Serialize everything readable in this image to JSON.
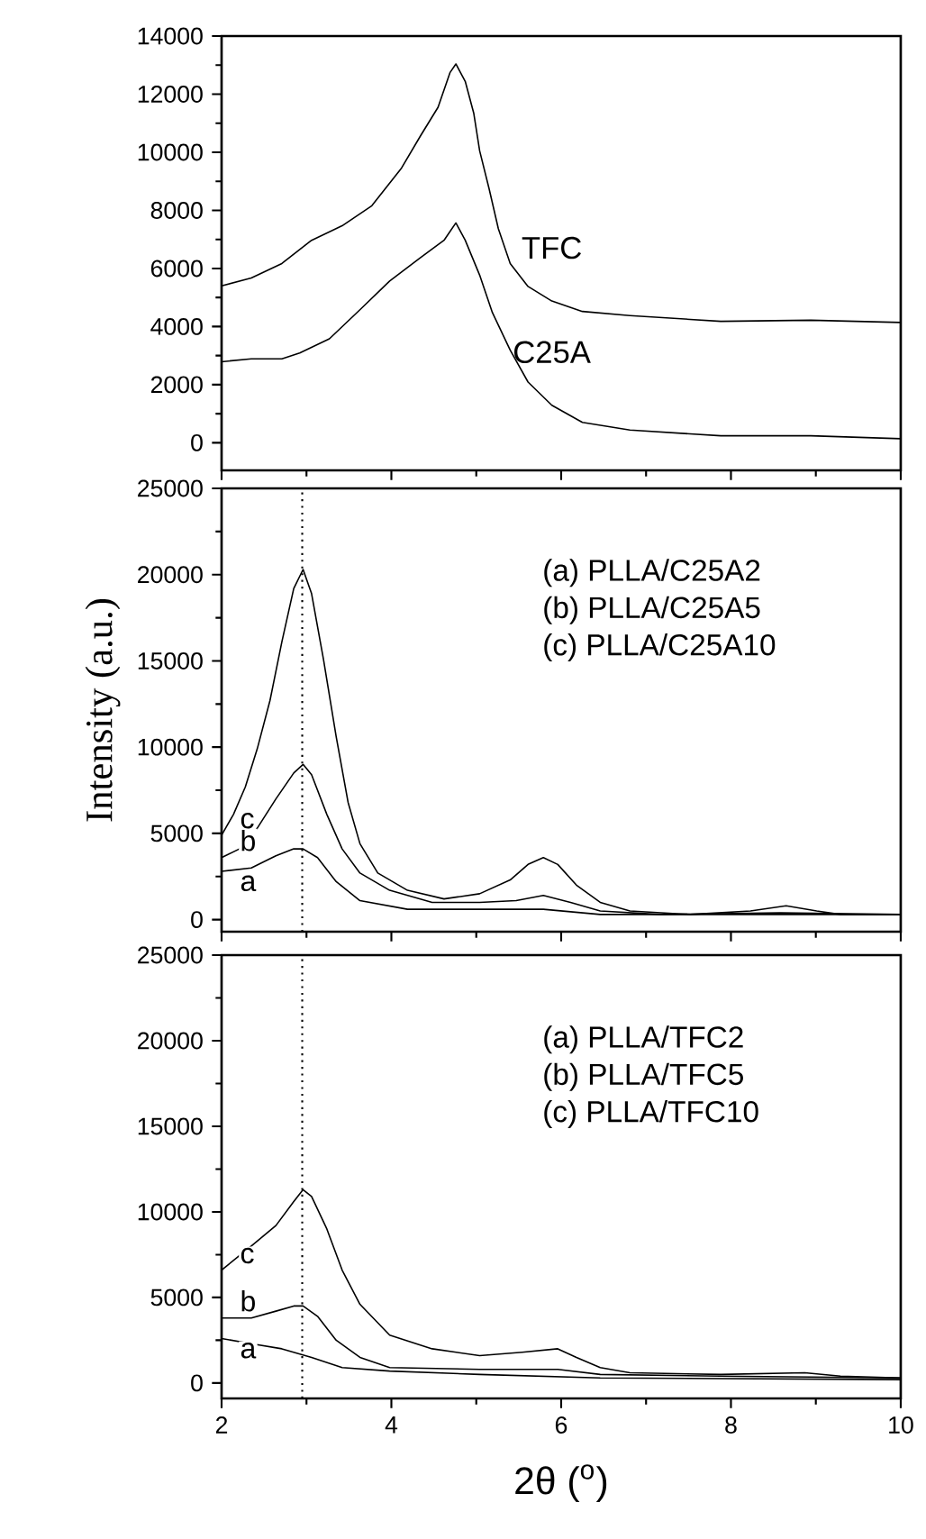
{
  "chart_data": [
    {
      "type": "line",
      "xlim": [
        2,
        10
      ],
      "ylim": [
        -950,
        14000
      ],
      "xticks": [
        2,
        4,
        6,
        8,
        10
      ],
      "yticks": [
        0,
        2000,
        4000,
        6000,
        8000,
        10000,
        12000,
        14000
      ],
      "tick_labels": "y",
      "series": [
        {
          "name": "TFC",
          "color": "#000000",
          "x": [
            2,
            2.35,
            2.71,
            3.06,
            3.42,
            3.77,
            4.12,
            4.34,
            4.55,
            4.69,
            4.76,
            4.87,
            4.97,
            5.04,
            5.15,
            5.26,
            5.4,
            5.61,
            5.89,
            6.25,
            6.81,
            7.88,
            8.94,
            10
          ],
          "values": [
            5400,
            5670,
            6170,
            6970,
            7470,
            8160,
            9460,
            10550,
            11550,
            12740,
            13040,
            12440,
            11350,
            10050,
            8760,
            7370,
            6170,
            5380,
            4880,
            4520,
            4380,
            4180,
            4220,
            4140
          ]
        },
        {
          "name": "C25A",
          "color": "#000000",
          "x": [
            2,
            2.35,
            2.71,
            2.92,
            3.27,
            3.63,
            3.98,
            4.34,
            4.62,
            4.76,
            4.87,
            5.04,
            5.19,
            5.4,
            5.61,
            5.89,
            6.25,
            6.81,
            7.88,
            8.94,
            10
          ],
          "values": [
            2790,
            2890,
            2890,
            3090,
            3580,
            4580,
            5570,
            6370,
            6970,
            7570,
            6970,
            5770,
            4480,
            3190,
            2090,
            1290,
            700,
            440,
            240,
            240,
            140
          ]
        }
      ]
    },
    {
      "type": "line",
      "xlim": [
        2,
        10
      ],
      "ylim": [
        -700,
        25000
      ],
      "xticks": [
        2,
        4,
        6,
        8,
        10
      ],
      "yticks": [
        0,
        5000,
        10000,
        15000,
        20000,
        25000
      ],
      "tick_labels": "y",
      "ylabel": "Intensity (a.u.)",
      "legend": "left",
      "annotations": [
        "(a) PLLA/C25A2",
        "(b) PLLA/C25A5",
        "(c) PLLA/C25A10"
      ],
      "ref_lines": [
        {
          "axis": "x",
          "value": 2.95,
          "line_style": "dotted"
        }
      ],
      "series": [
        {
          "name": "a",
          "color": "#000000",
          "x": [
            2,
            2.35,
            2.64,
            2.85,
            2.96,
            3.13,
            3.35,
            3.63,
            4.19,
            5.04,
            5.79,
            6.46,
            7.88,
            10
          ],
          "values": [
            2800,
            3000,
            3700,
            4100,
            4100,
            3600,
            2200,
            1100,
            600,
            600,
            600,
            300,
            300,
            300
          ]
        },
        {
          "name": "b",
          "color": "#000000",
          "x": [
            2,
            2.21,
            2.42,
            2.64,
            2.85,
            2.96,
            3.06,
            3.24,
            3.42,
            3.63,
            3.98,
            4.48,
            5.04,
            5.47,
            5.79,
            6.11,
            6.46,
            7.17,
            8.58,
            10
          ],
          "values": [
            3600,
            4100,
            5300,
            7000,
            8500,
            9000,
            8400,
            6100,
            4100,
            2700,
            1700,
            1000,
            1000,
            1100,
            1400,
            1000,
            500,
            300,
            400,
            300
          ]
        },
        {
          "name": "c",
          "color": "#000000",
          "x": [
            2,
            2.14,
            2.28,
            2.42,
            2.57,
            2.71,
            2.85,
            2.96,
            3.06,
            3.2,
            3.35,
            3.49,
            3.63,
            3.84,
            4.19,
            4.62,
            5.04,
            5.4,
            5.61,
            5.79,
            5.96,
            6.18,
            6.46,
            6.81,
            7.52,
            8.23,
            8.65,
            9.01,
            9.29,
            10
          ],
          "values": [
            4900,
            6100,
            7700,
            9900,
            12700,
            16100,
            19200,
            20300,
            18900,
            15100,
            10600,
            6800,
            4400,
            2700,
            1700,
            1200,
            1500,
            2300,
            3200,
            3600,
            3200,
            2000,
            1000,
            500,
            300,
            500,
            800,
            500,
            300,
            300
          ]
        }
      ]
    },
    {
      "type": "line",
      "xlim": [
        2,
        10
      ],
      "ylim": [
        -900,
        25000
      ],
      "xticks": [
        2,
        4,
        6,
        8,
        10
      ],
      "yticks": [
        0,
        5000,
        10000,
        15000,
        20000,
        25000
      ],
      "xlabel": "2θ ($^{o}$)",
      "legend": "left",
      "annotations": [
        "(a) PLLA/TFC2",
        "(b) PLLA/TFC5",
        "(c) PLLA/TFC10"
      ],
      "ref_lines": [
        {
          "axis": "x",
          "value": 2.95,
          "line_style": "dotted"
        }
      ],
      "series": [
        {
          "name": "a",
          "color": "#000000",
          "x": [
            2,
            2.35,
            2.71,
            3.06,
            3.42,
            3.98,
            5.04,
            6.46,
            10
          ],
          "values": [
            2600,
            2300,
            2000,
            1500,
            900,
            700,
            500,
            300,
            200
          ]
        },
        {
          "name": "b",
          "color": "#000000",
          "x": [
            2,
            2.35,
            2.64,
            2.85,
            2.96,
            3.13,
            3.35,
            3.63,
            3.98,
            5.04,
            5.96,
            6.46,
            7.88,
            10
          ],
          "values": [
            3800,
            3800,
            4200,
            4500,
            4500,
            3900,
            2500,
            1500,
            900,
            800,
            800,
            500,
            400,
            300
          ]
        },
        {
          "name": "c",
          "color": "#000000",
          "x": [
            2,
            2.35,
            2.64,
            2.85,
            2.96,
            3.06,
            3.24,
            3.42,
            3.63,
            3.98,
            4.48,
            5.04,
            5.54,
            5.96,
            6.18,
            6.46,
            6.81,
            7.88,
            8.87,
            9.29,
            10
          ],
          "values": [
            6600,
            8000,
            9200,
            10600,
            11300,
            10900,
            9000,
            6600,
            4600,
            2800,
            2000,
            1600,
            1800,
            2000,
            1500,
            900,
            600,
            500,
            600,
            400,
            300
          ]
        }
      ]
    }
  ]
}
